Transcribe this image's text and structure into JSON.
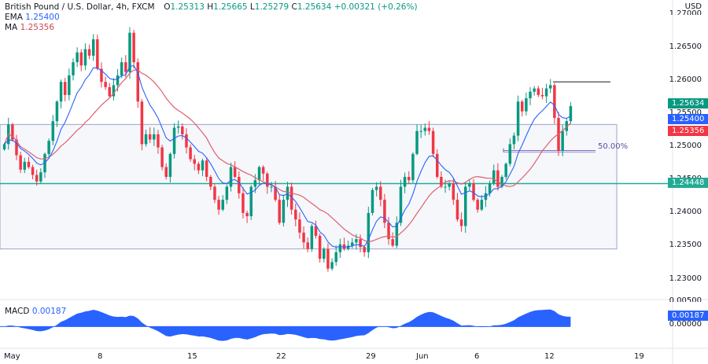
{
  "header": {
    "symbol": "British Pound / U.S. Dollar, 4h, FXCM",
    "open_label": "O",
    "open": "1.25313",
    "high_label": "H",
    "high": "1.25665",
    "low_label": "L",
    "low": "1.25279",
    "close_label": "C",
    "close": "1.25634",
    "change": "+0.00321 (+0.26%)",
    "ema_label": "EMA",
    "ema_value": "1.25400",
    "ma_label": "MA",
    "ma_value": "1.25356"
  },
  "price_axis": {
    "currency": "USD",
    "labels": [
      "1.27000",
      "1.26500",
      "1.26000",
      "1.25500",
      "1.25000",
      "1.24500",
      "1.24000",
      "1.23500",
      "1.23000"
    ]
  },
  "tags": {
    "last_price": "1.25634",
    "ema": "1.25400",
    "ma": "1.25356",
    "support": "1.24448",
    "macd_value": "0.00187",
    "macd_zero": "0.00000",
    "macd_top": "0.00500"
  },
  "annotations": {
    "fib_label": "50.00%"
  },
  "macd": {
    "label": "MACD",
    "value": "0.00187"
  },
  "date_axis": {
    "labels": [
      "May",
      "8",
      "15",
      "22",
      "29",
      "Jun",
      "6",
      "12",
      "19"
    ]
  },
  "colors": {
    "up": "#089981",
    "down": "#f23645",
    "ema": "#2962ff",
    "ma": "#e0606e",
    "support_line": "#22ab94",
    "range_box": "#9aa6c8",
    "macd_fill": "#2962ff"
  },
  "chart_data": {
    "type": "candlestick",
    "title": "British Pound / U.S. Dollar, 4h, FXCM",
    "ylim": [
      1.2275,
      1.2725
    ],
    "x_ticks": [
      "May",
      "8",
      "15",
      "22",
      "29",
      "Jun",
      "6",
      "12",
      "19"
    ],
    "support_level": 1.24448,
    "resistance_level": 1.26,
    "range_box": {
      "y_top": 1.2535,
      "y_bottom": 1.2345
    },
    "fib_level": {
      "label": "50.00%",
      "y": 1.2495
    },
    "closes": [
      1.2505,
      1.2535,
      1.2512,
      1.2488,
      1.2466,
      1.2478,
      1.247,
      1.2458,
      1.2448,
      1.2462,
      1.249,
      1.251,
      1.254,
      1.257,
      1.26,
      1.258,
      1.261,
      1.263,
      1.2645,
      1.2625,
      1.265,
      1.264,
      1.2665,
      1.262,
      1.26,
      1.2592,
      1.2578,
      1.2595,
      1.261,
      1.263,
      1.2615,
      1.2675,
      1.263,
      1.257,
      1.2505,
      1.252,
      1.2512,
      1.252,
      1.25,
      1.247,
      1.2455,
      1.249,
      1.253,
      1.2532,
      1.252,
      1.25,
      1.2482,
      1.2475,
      1.2465,
      1.248,
      1.2455,
      1.244,
      1.242,
      1.2405,
      1.242,
      1.244,
      1.247,
      1.2455,
      1.243,
      1.24,
      1.2395,
      1.244,
      1.245,
      1.247,
      1.246,
      1.244,
      1.244,
      1.242,
      1.2385,
      1.242,
      1.244,
      1.2405,
      1.239,
      1.237,
      1.2355,
      1.2345,
      1.238,
      1.2365,
      1.233,
      1.2345,
      1.2315,
      1.2325,
      1.234,
      1.2352,
      1.2345,
      1.235,
      1.2355,
      1.236,
      1.2348,
      1.234,
      1.24,
      1.2435,
      1.244,
      1.242,
      1.2385,
      1.236,
      1.235,
      1.2385,
      1.244,
      1.2455,
      1.245,
      1.249,
      1.2525,
      1.2525,
      1.253,
      1.2525,
      1.249,
      1.2455,
      1.244,
      1.244,
      1.2445,
      1.242,
      1.239,
      1.238,
      1.244,
      1.2445,
      1.242,
      1.2405,
      1.242,
      1.243,
      1.2445,
      1.2465,
      1.244,
      1.2455,
      1.2475,
      1.2505,
      1.2518,
      1.257,
      1.2555,
      1.2575,
      1.2585,
      1.259,
      1.258,
      1.2578,
      1.259,
      1.2595,
      1.2545,
      1.2495,
      1.2525,
      1.254,
      1.2563
    ],
    "ema_last": 1.254,
    "ma_last": 1.25356,
    "macd_ylim": [
      -0.004,
      0.005
    ],
    "macd_last": 0.00187
  }
}
